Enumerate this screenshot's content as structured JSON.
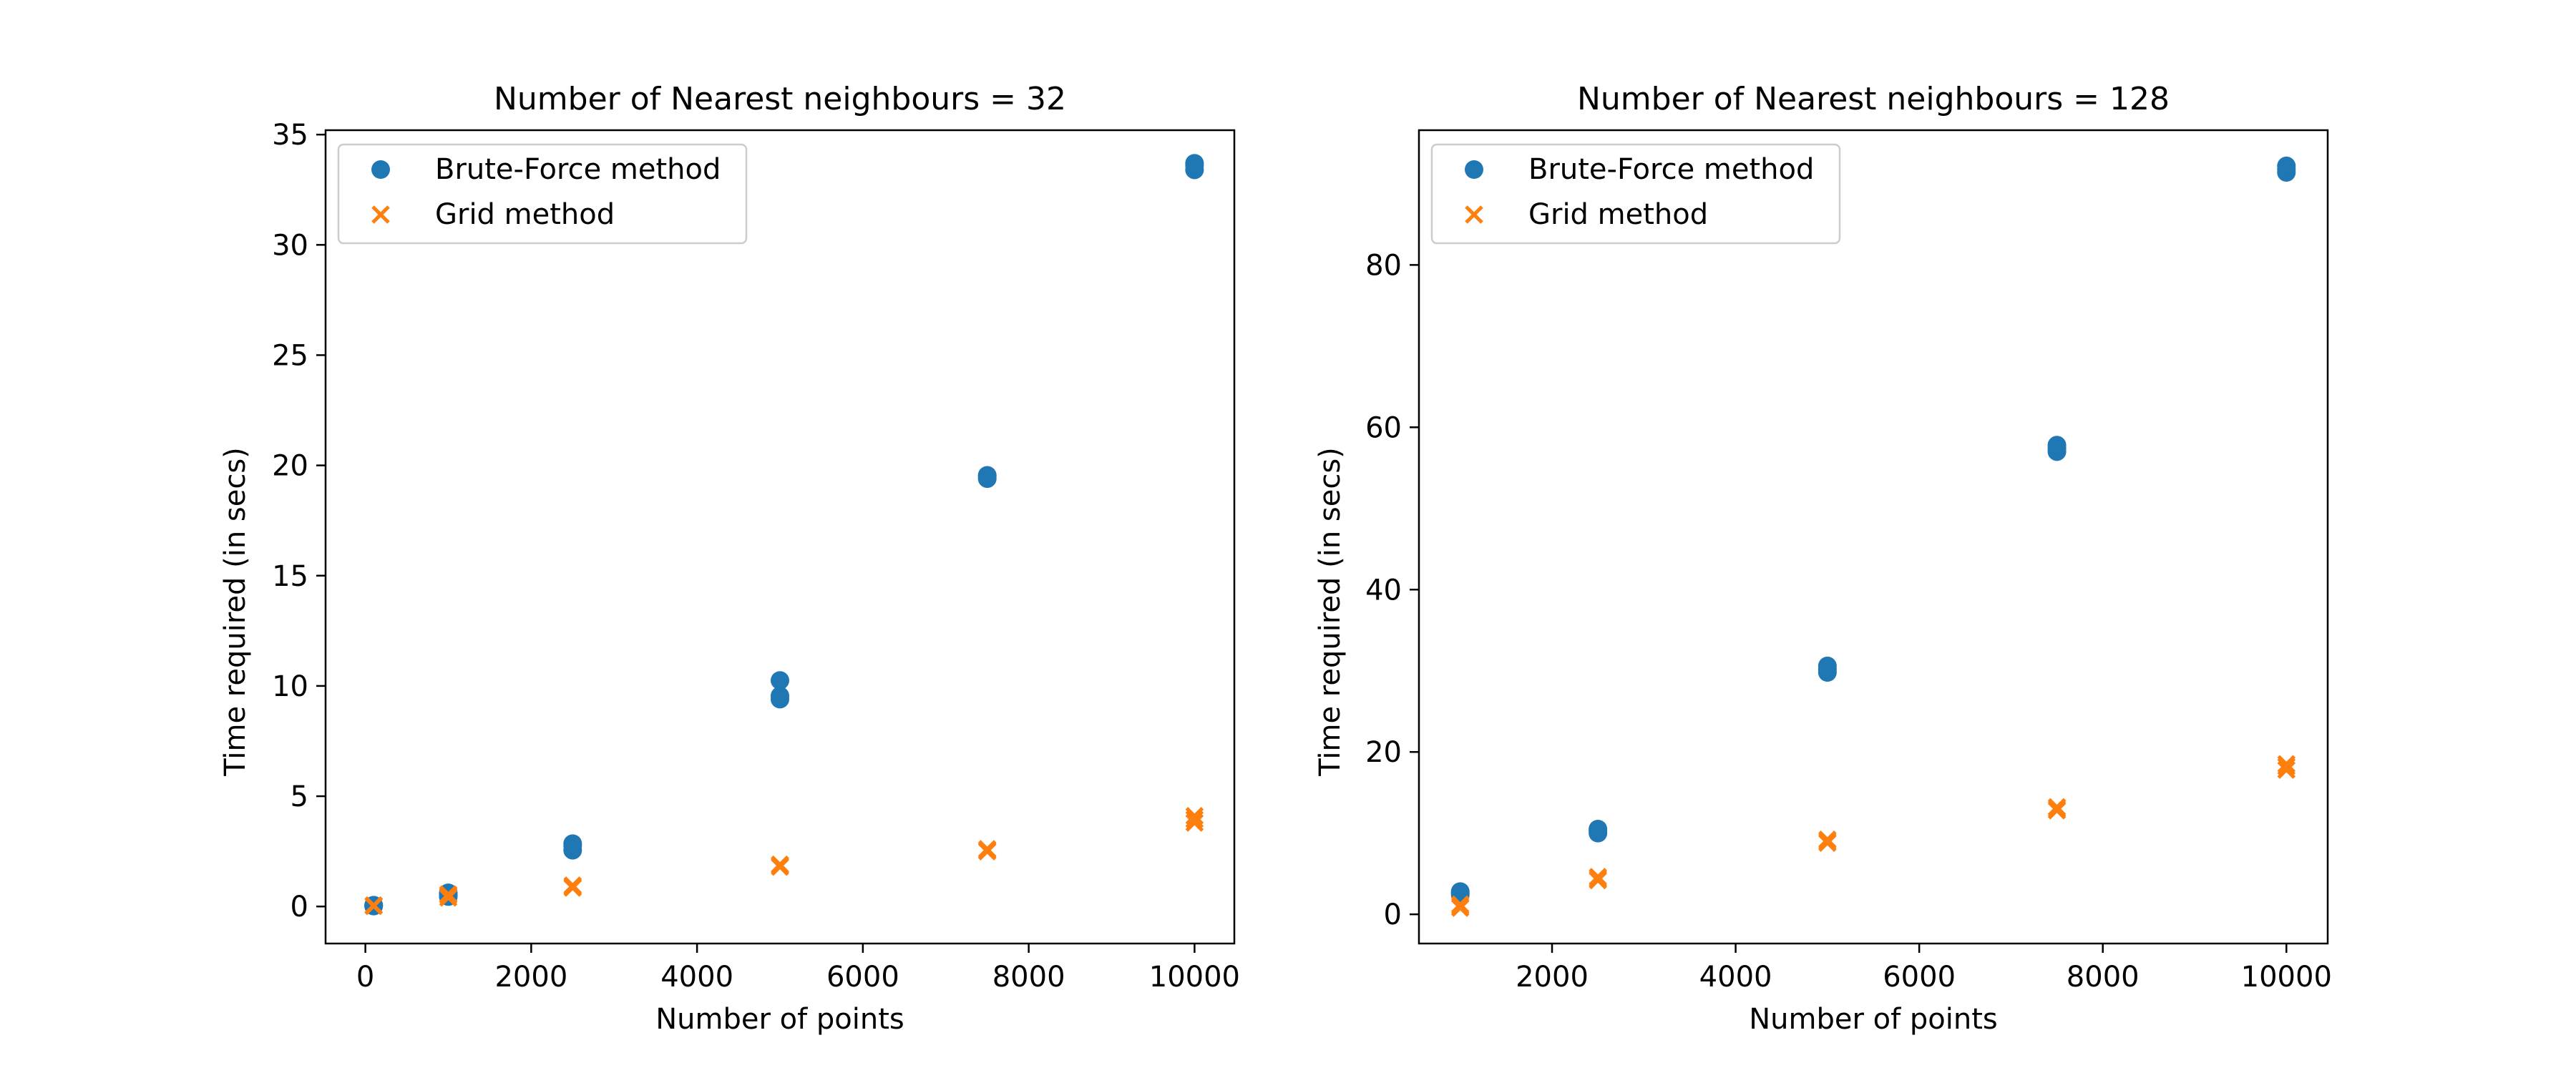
{
  "colors": {
    "brute_force": "#1f77b4",
    "grid": "#ff7f0e",
    "axes": "#000000",
    "legend_border": "#cccccc"
  },
  "chart_data": [
    {
      "type": "scatter",
      "title": "Number of Nearest neighbours = 32",
      "xlabel": "Number of points",
      "ylabel": "Time required (in secs)",
      "xlim": [
        -480,
        10480
      ],
      "ylim": [
        -1.68,
        35.2
      ],
      "xticks": [
        0,
        2000,
        4000,
        6000,
        8000,
        10000
      ],
      "yticks": [
        0,
        5,
        10,
        15,
        20,
        25,
        30,
        35
      ],
      "grid": false,
      "legend": "top-left",
      "series": [
        {
          "name": "Brute-Force method",
          "marker": "circle",
          "color": "#1f77b4",
          "points": [
            [
              100,
              0.02
            ],
            [
              100,
              0.04
            ],
            [
              100,
              0.06
            ],
            [
              1000,
              0.45
            ],
            [
              1000,
              0.55
            ],
            [
              1000,
              0.62
            ],
            [
              2500,
              2.55
            ],
            [
              2500,
              2.75
            ],
            [
              2500,
              2.85
            ],
            [
              5000,
              9.4
            ],
            [
              5000,
              9.55
            ],
            [
              5000,
              10.25
            ],
            [
              7500,
              19.4
            ],
            [
              7500,
              19.5
            ],
            [
              7500,
              19.55
            ],
            [
              10000,
              33.4
            ],
            [
              10000,
              33.6
            ],
            [
              10000,
              33.7
            ]
          ]
        },
        {
          "name": "Grid method",
          "marker": "x",
          "color": "#ff7f0e",
          "points": [
            [
              100,
              0.02
            ],
            [
              100,
              0.03
            ],
            [
              100,
              0.05
            ],
            [
              1000,
              0.4
            ],
            [
              1000,
              0.5
            ],
            [
              1000,
              0.55
            ],
            [
              2500,
              0.85
            ],
            [
              2500,
              0.9
            ],
            [
              2500,
              0.95
            ],
            [
              5000,
              1.8
            ],
            [
              5000,
              1.85
            ],
            [
              5000,
              1.9
            ],
            [
              7500,
              2.5
            ],
            [
              7500,
              2.55
            ],
            [
              7500,
              2.6
            ],
            [
              10000,
              3.8
            ],
            [
              10000,
              3.95
            ],
            [
              10000,
              4.1
            ]
          ]
        }
      ]
    },
    {
      "type": "scatter",
      "title": "Number of Nearest neighbours = 128",
      "xlabel": "Number of points",
      "ylabel": "Time required (in secs)",
      "xlim": [
        550,
        10450
      ],
      "ylim": [
        -3.6,
        96.6
      ],
      "xticks": [
        2000,
        4000,
        6000,
        8000,
        10000
      ],
      "yticks": [
        0,
        20,
        40,
        60,
        80
      ],
      "grid": false,
      "legend": "top-left",
      "series": [
        {
          "name": "Brute-Force method",
          "marker": "circle",
          "color": "#1f77b4",
          "points": [
            [
              1000,
              2.4
            ],
            [
              1000,
              2.6
            ],
            [
              1000,
              2.8
            ],
            [
              2500,
              10.0
            ],
            [
              2500,
              10.3
            ],
            [
              2500,
              10.5
            ],
            [
              5000,
              29.8
            ],
            [
              5000,
              30.2
            ],
            [
              5000,
              30.6
            ],
            [
              7500,
              57.0
            ],
            [
              7500,
              57.4
            ],
            [
              7500,
              57.8
            ],
            [
              10000,
              91.4
            ],
            [
              10000,
              91.8
            ],
            [
              10000,
              92.2
            ]
          ]
        },
        {
          "name": "Grid method",
          "marker": "x",
          "color": "#ff7f0e",
          "points": [
            [
              1000,
              0.8
            ],
            [
              1000,
              1.0
            ],
            [
              1000,
              1.2
            ],
            [
              2500,
              4.2
            ],
            [
              2500,
              4.4
            ],
            [
              2500,
              4.6
            ],
            [
              5000,
              8.8
            ],
            [
              5000,
              9.0
            ],
            [
              5000,
              9.2
            ],
            [
              7500,
              12.8
            ],
            [
              7500,
              13.0
            ],
            [
              7500,
              13.2
            ],
            [
              10000,
              17.8
            ],
            [
              10000,
              18.2
            ],
            [
              10000,
              18.5
            ]
          ]
        }
      ]
    }
  ]
}
